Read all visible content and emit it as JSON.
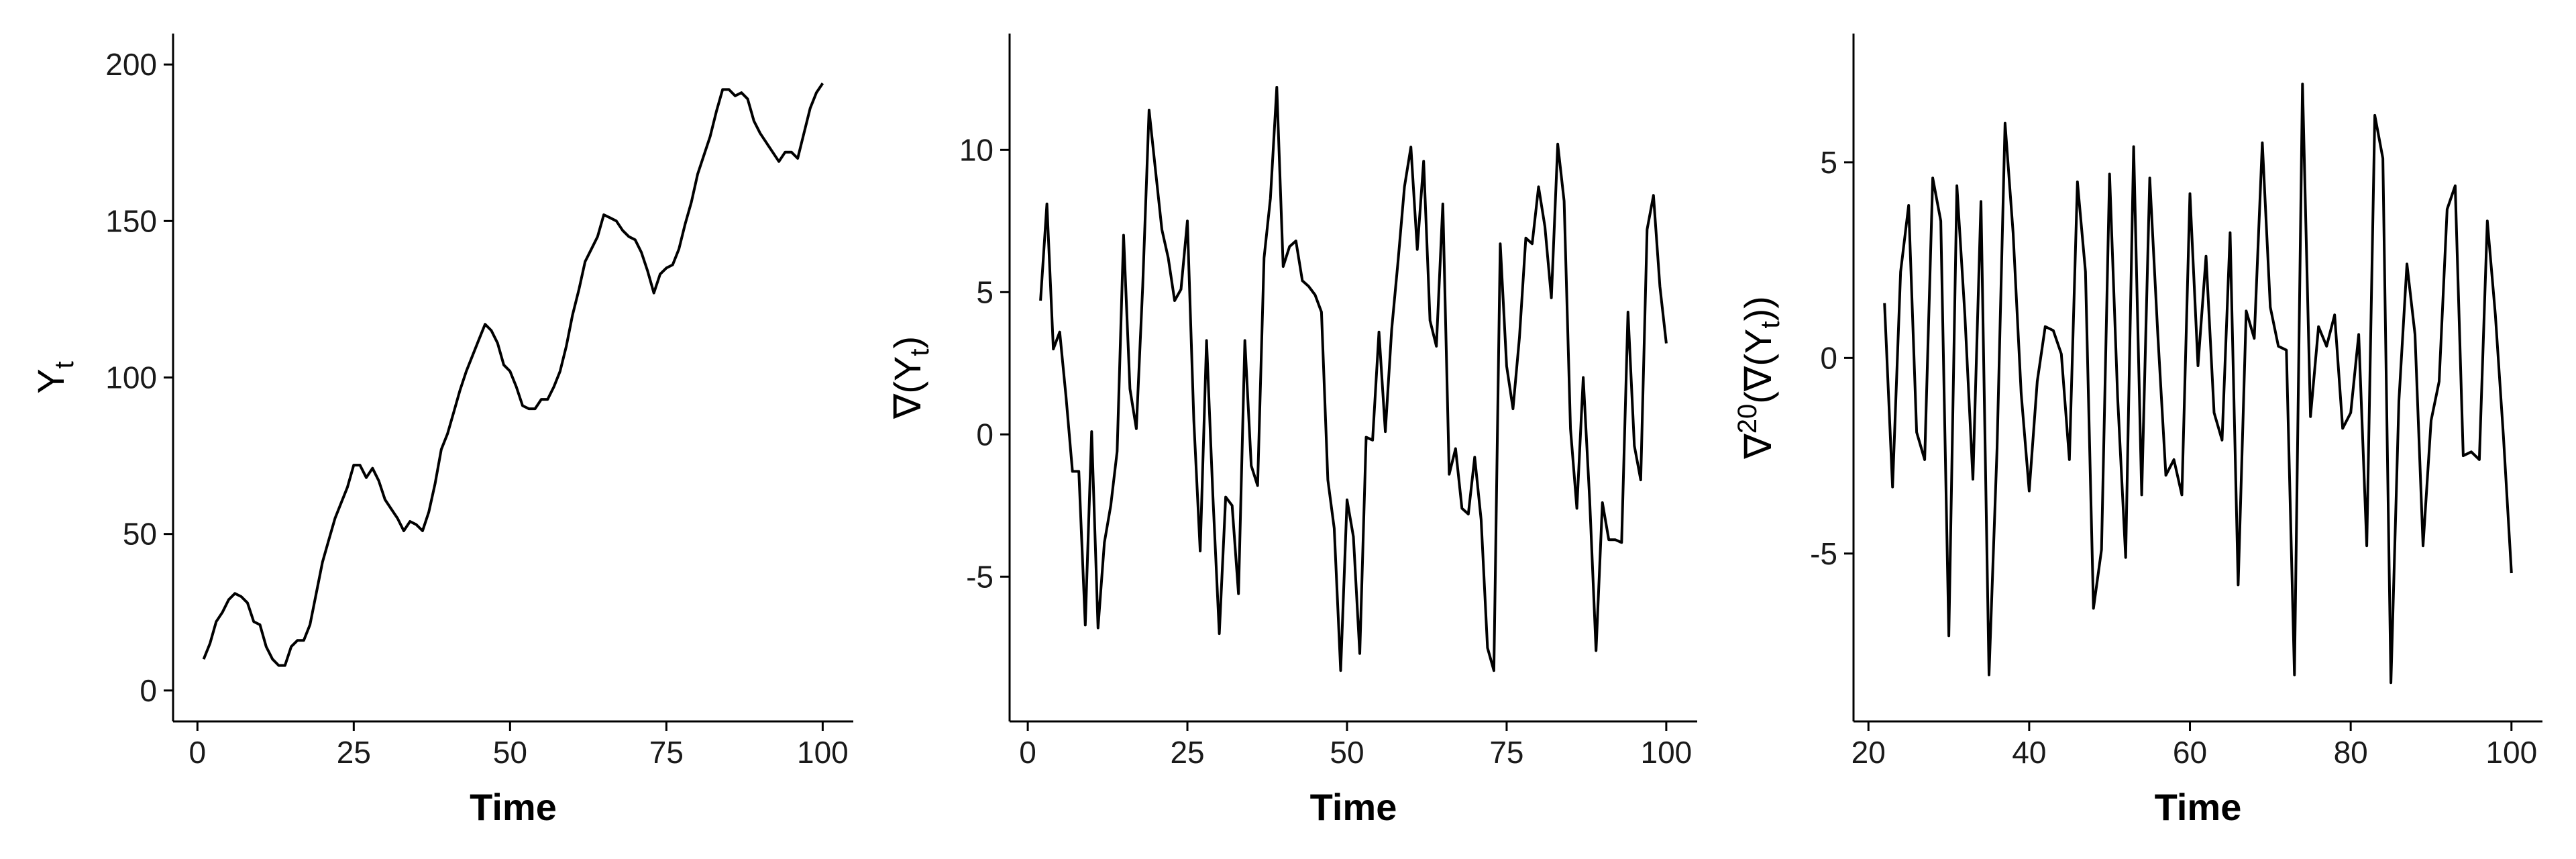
{
  "chart_data": [
    {
      "type": "line",
      "xlabel": "Time",
      "ylabel_base": "Y",
      "ylabel_sub": "t",
      "xlim": [
        1,
        100
      ],
      "ylim": [
        0,
        200
      ],
      "xticks": [
        0,
        25,
        50,
        75,
        100
      ],
      "yticks": [
        0,
        50,
        100,
        150,
        200
      ],
      "grid": false,
      "series": [
        {
          "x": [
            1,
            2,
            3,
            4,
            5,
            6,
            7,
            8,
            9,
            10,
            11,
            12,
            13,
            14,
            15,
            16,
            17,
            18,
            19,
            20,
            21,
            22,
            23,
            24,
            25,
            26,
            27,
            28,
            29,
            30,
            31,
            32,
            33,
            34,
            35,
            36,
            37,
            38,
            39,
            40,
            41,
            42,
            43,
            44,
            45,
            46,
            47,
            48,
            49,
            50,
            51,
            52,
            53,
            54,
            55,
            56,
            57,
            58,
            59,
            60,
            61,
            62,
            63,
            64,
            65,
            66,
            67,
            68,
            69,
            70,
            71,
            72,
            73,
            74,
            75,
            76,
            77,
            78,
            79,
            80,
            81,
            82,
            83,
            84,
            85,
            86,
            87,
            88,
            89,
            90,
            91,
            92,
            93,
            94,
            95,
            96,
            97,
            98,
            99,
            100
          ],
          "y": [
            10,
            15,
            22,
            25,
            29,
            31,
            30,
            28,
            22,
            21,
            14,
            10,
            8,
            8,
            14,
            16,
            16,
            21,
            31,
            41,
            48,
            55,
            60,
            65,
            72,
            72,
            68,
            71,
            67,
            61,
            58,
            55,
            51,
            54,
            53,
            51,
            57,
            66,
            77,
            82,
            89,
            96,
            102,
            107,
            112,
            117,
            115,
            111,
            104,
            102,
            97,
            91,
            90,
            90,
            93,
            93,
            97,
            102,
            110,
            120,
            128,
            137,
            141,
            145,
            152,
            151,
            150,
            147,
            145,
            144,
            140,
            134,
            127,
            133,
            135,
            136,
            141,
            149,
            156,
            165,
            171,
            177,
            185,
            192,
            192,
            190,
            191,
            189,
            182,
            178,
            175,
            172,
            169,
            172,
            172,
            170,
            178,
            186,
            191,
            194
          ]
        }
      ]
    },
    {
      "type": "line",
      "xlabel": "Time",
      "ylabel_prefix": "∇(Y",
      "ylabel_sub": "t",
      "ylabel_suffix": ")",
      "xlim": [
        2,
        100
      ],
      "ylim": [
        -9,
        13
      ],
      "xticks": [
        0,
        25,
        50,
        75,
        100
      ],
      "yticks": [
        -5,
        0,
        5,
        10
      ],
      "ytick_labels": [
        "-5",
        "0",
        "5",
        "10"
      ],
      "grid": false,
      "series": [
        {
          "x": [
            2,
            3,
            4,
            5,
            6,
            7,
            8,
            9,
            10,
            11,
            12,
            13,
            14,
            15,
            16,
            17,
            18,
            19,
            20,
            21,
            22,
            23,
            24,
            25,
            26,
            27,
            28,
            29,
            30,
            31,
            32,
            33,
            34,
            35,
            36,
            37,
            38,
            39,
            40,
            41,
            42,
            43,
            44,
            45,
            46,
            47,
            48,
            49,
            50,
            51,
            52,
            53,
            54,
            55,
            56,
            57,
            58,
            59,
            60,
            61,
            62,
            63,
            64,
            65,
            66,
            67,
            68,
            69,
            70,
            71,
            72,
            73,
            74,
            75,
            76,
            77,
            78,
            79,
            80,
            81,
            82,
            83,
            84,
            85,
            86,
            87,
            88,
            89,
            90,
            91,
            92,
            93,
            94,
            95,
            96,
            97,
            98,
            99,
            100
          ],
          "y": [
            4.7,
            8.1,
            3,
            3.6,
            1.3,
            -1.3,
            -1.3,
            -6.7,
            0.1,
            -6.8,
            -3.8,
            -2.5,
            -0.6,
            7,
            1.6,
            0.2,
            5.2,
            11.4,
            9.3,
            7.2,
            6.2,
            4.7,
            5.1,
            7.5,
            0.5,
            -4.1,
            3.3,
            -2.2,
            -7,
            -2.2,
            -2.5,
            -5.6,
            3.3,
            -1.1,
            -1.8,
            6.2,
            8.3,
            12.2,
            5.9,
            6.6,
            6.8,
            5.4,
            5.2,
            4.9,
            4.3,
            -1.6,
            -3.3,
            -8.3,
            -2.3,
            -3.6,
            -7.7,
            -0.1,
            -0.2,
            3.6,
            0.1,
            3.7,
            6.1,
            8.7,
            10.1,
            6.5,
            9.6,
            4,
            3.1,
            8.1,
            -1.4,
            -0.5,
            -2.6,
            -2.8,
            -0.8,
            -3,
            -7.5,
            -8.3,
            6.7,
            2.4,
            0.9,
            3.4,
            6.9,
            6.7,
            8.7,
            7.3,
            4.8,
            10.2,
            8.2,
            0.2,
            -2.6,
            2,
            -2.3,
            -7.6,
            -2.4,
            -3.7,
            -3.7,
            -3.8,
            4.3,
            -0.4,
            -1.6,
            7.2,
            8.4,
            5.2,
            3.2
          ]
        }
      ]
    },
    {
      "type": "line",
      "xlabel": "Time",
      "ylabel_prefix": "∇",
      "ylabel_sup": "20",
      "ylabel_middle": "(∇(Y",
      "ylabel_sub": "t",
      "ylabel_suffix": "))",
      "xlim": [
        22,
        100
      ],
      "ylim": [
        -8.5,
        7.5
      ],
      "xticks": [
        20,
        40,
        60,
        80,
        100
      ],
      "yticks": [
        -5,
        0,
        5
      ],
      "ytick_labels": [
        "-5",
        "0",
        "5"
      ],
      "grid": false,
      "series": [
        {
          "x": [
            22,
            23,
            24,
            25,
            26,
            27,
            28,
            29,
            30,
            31,
            32,
            33,
            34,
            35,
            36,
            37,
            38,
            39,
            40,
            41,
            42,
            43,
            44,
            45,
            46,
            47,
            48,
            49,
            50,
            51,
            52,
            53,
            54,
            55,
            56,
            57,
            58,
            59,
            60,
            61,
            62,
            63,
            64,
            65,
            66,
            67,
            68,
            69,
            70,
            71,
            72,
            73,
            74,
            75,
            76,
            77,
            78,
            79,
            80,
            81,
            82,
            83,
            84,
            85,
            86,
            87,
            88,
            89,
            90,
            91,
            92,
            93,
            94,
            95,
            96,
            97,
            98,
            99,
            100
          ],
          "y": [
            1.4,
            -3.3,
            2.2,
            3.9,
            -1.9,
            -2.6,
            4.6,
            3.5,
            -7.1,
            4.4,
            1.1,
            -3.1,
            4,
            -8.1,
            -2.3,
            6,
            3.2,
            -0.9,
            -3.4,
            -0.6,
            0.8,
            0.7,
            0.1,
            -2.6,
            4.5,
            2.2,
            -6.4,
            -4.9,
            4.7,
            -1,
            -5.1,
            5.4,
            -3.5,
            4.6,
            0.6,
            -3,
            -2.6,
            -3.5,
            4.2,
            -0.2,
            2.6,
            -1.4,
            -2.1,
            3.2,
            -5.8,
            1.2,
            0.5,
            5.5,
            1.3,
            0.3,
            0.2,
            -8.1,
            7,
            -1.5,
            0.8,
            0.3,
            1.1,
            -1.8,
            -1.4,
            0.6,
            -4.8,
            6.2,
            5.1,
            -8.3,
            -1.1,
            2.4,
            0.6,
            -4.8,
            -1.6,
            -0.6,
            3.8,
            4.4,
            -2.5,
            -2.4,
            -2.6,
            3.5,
            1.1,
            -2,
            -5.5
          ]
        }
      ]
    }
  ]
}
